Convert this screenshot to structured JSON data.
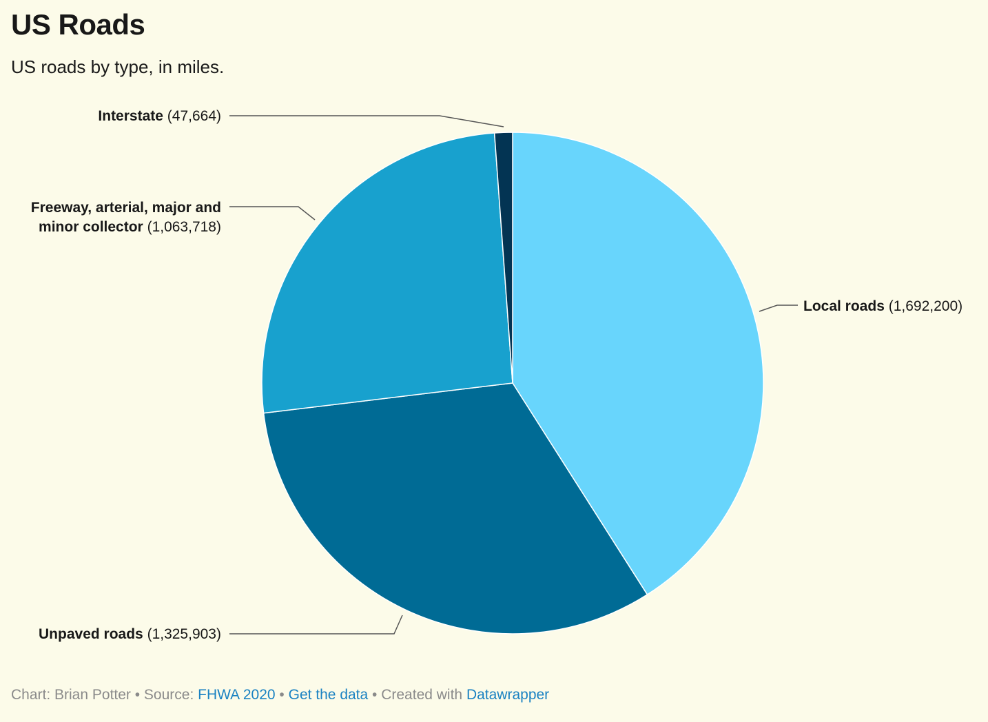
{
  "header": {
    "title": "US Roads",
    "subtitle": "US roads by type, in miles."
  },
  "chart_data": {
    "type": "pie",
    "title": "US Roads",
    "subtitle": "US roads by type, in miles.",
    "slices": [
      {
        "name": "Local roads",
        "value": 1692200,
        "value_label": "1,692,200",
        "color": "#68d5fc"
      },
      {
        "name": "Unpaved roads",
        "value": 1325903,
        "value_label": "1,325,903",
        "color": "#006b95"
      },
      {
        "name": "Freeway, arterial, major and minor collector",
        "value": 1063718,
        "value_label": "1,063,718",
        "color": "#18a1ce"
      },
      {
        "name": "Interstate",
        "value": 47664,
        "value_label": "47,664",
        "color": "#033453"
      }
    ]
  },
  "footer": {
    "chart_prefix": "Chart: Brian Potter",
    "sep1": " • Source: ",
    "source_link": "FHWA 2020",
    "sep2": " • ",
    "data_link": "Get the data",
    "sep3": " • Created with ",
    "tool_link": "Datawrapper"
  }
}
